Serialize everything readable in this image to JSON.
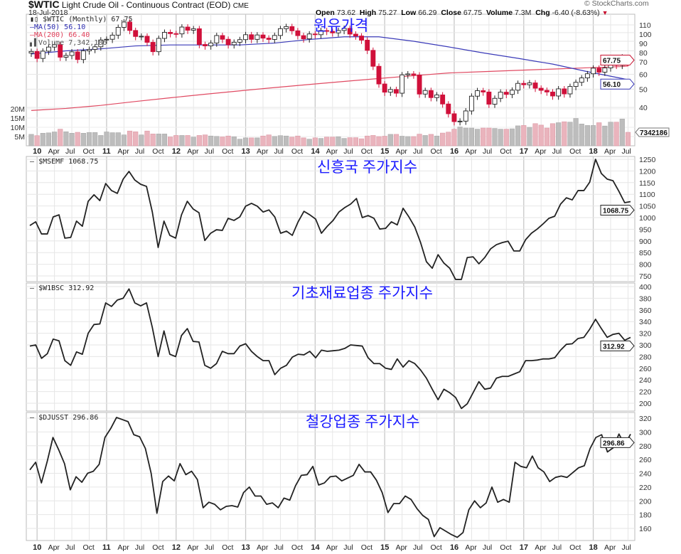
{
  "header": {
    "symbol": "$WTIC",
    "name": "Light Crude Oil - Continuous Contract (EOD)",
    "exchange": "CME",
    "date": "18-Jul-2018",
    "watermark": "© StockCharts.com",
    "ohlc": {
      "open_label": "Open",
      "open": "73.62",
      "high_label": "High",
      "high": "75.27",
      "low_label": "Low",
      "low": "66.29",
      "close_label": "Close",
      "close": "67.75",
      "volume_label": "Volume",
      "volume": "7.3M",
      "chg_label": "Chg",
      "chg": "-6.40 (-8.63%)"
    }
  },
  "annotations": {
    "oil": "원유가격",
    "em": "신흥국 주가지수",
    "materials": "기초재료업종 주가지수",
    "steel": "철강업종 주가지수"
  },
  "colors": {
    "up_candle": "#ffffff",
    "down_candle": "#d0103a",
    "up_volume": "#bdbdbd",
    "down_volume": "#eab4bd",
    "ma50": "#3a3ab8",
    "ma200": "#e04a62",
    "line": "#222222",
    "annotation": "#1a1aff"
  },
  "x_labels": [
    "10",
    "Apr",
    "Jul",
    "Oct",
    "11",
    "Apr",
    "Jul",
    "Oct",
    "12",
    "Apr",
    "Jul",
    "Oct",
    "13",
    "Apr",
    "Jul",
    "Oct",
    "14",
    "Apr",
    "Jul",
    "Oct",
    "15",
    "Apr",
    "Jul",
    "Oct",
    "16",
    "Apr",
    "Jul",
    "Oct",
    "17",
    "Apr",
    "Jul",
    "Oct",
    "18",
    "Apr",
    "Jul"
  ],
  "chart_data": [
    {
      "type": "candlestick",
      "period": "Monthly",
      "start": "Dec 2009",
      "end": "Jul 2018",
      "legend": [
        "$WTIC (Monthly) 67.75",
        "MA(50) 56.10",
        "MA(200) 66.40",
        "Volume 7,342,186"
      ],
      "y_scale": "log",
      "y_ticks": [
        40,
        50,
        60,
        70,
        80,
        90,
        100,
        110
      ],
      "close": [
        79.4,
        72.9,
        79.7,
        83.8,
        86.2,
        74.0,
        75.6,
        79.0,
        71.9,
        80.0,
        81.4,
        84.1,
        91.4,
        92.2,
        97.0,
        106.7,
        113.9,
        102.7,
        95.4,
        95.7,
        88.8,
        79.2,
        93.2,
        100.4,
        98.8,
        98.5,
        107.1,
        103.0,
        104.9,
        86.5,
        85.0,
        88.1,
        96.5,
        92.2,
        86.2,
        88.9,
        91.8,
        97.5,
        92.1,
        97.2,
        93.5,
        92.0,
        96.6,
        105.0,
        107.7,
        102.3,
        96.4,
        92.7,
        98.4,
        97.5,
        102.6,
        101.6,
        99.7,
        102.7,
        105.4,
        98.2,
        96.0,
        91.2,
        80.5,
        66.2,
        53.3,
        48.2,
        49.8,
        47.6,
        59.6,
        60.3,
        59.5,
        47.1,
        49.2,
        45.1,
        46.6,
        41.7,
        37.0,
        33.6,
        33.8,
        38.3,
        45.9,
        49.1,
        48.3,
        41.6,
        44.7,
        48.2,
        46.9,
        49.4,
        53.7,
        52.8,
        54.0,
        50.6,
        49.3,
        48.3,
        46.0,
        50.2,
        47.2,
        51.7,
        54.4,
        57.4,
        60.4,
        64.7,
        61.6,
        64.9,
        68.6,
        67.0,
        74.15,
        67.75
      ],
      "last_candle": {
        "open": 73.62,
        "high": 75.27,
        "low": 66.29,
        "close": 67.75
      },
      "ma50_semiannual": [
        77,
        80,
        82,
        85,
        86,
        86,
        86,
        88,
        92,
        95,
        95,
        90,
        84,
        78,
        73,
        68,
        62,
        57,
        56.1
      ],
      "ma200_semiannual": [
        38.5,
        39.5,
        41,
        43,
        45,
        47,
        49,
        51,
        53,
        55,
        57,
        59,
        61,
        62,
        63,
        64,
        65,
        66,
        66.4
      ],
      "volume_millions": [
        6.2,
        5.5,
        6.8,
        7.0,
        7.5,
        9.0,
        7.6,
        6.8,
        7.3,
        6.8,
        7.2,
        7.2,
        5.6,
        7.5,
        7.1,
        7.1,
        5.9,
        8.0,
        7.6,
        5.9,
        8.0,
        6.4,
        6.4,
        6.4,
        4.8,
        5.6,
        5.6,
        5.6,
        4.7,
        5.6,
        5.9,
        5.3,
        5.1,
        4.8,
        5.3,
        4.9,
        3.6,
        4.3,
        4.3,
        4.3,
        5.3,
        5.9,
        5.1,
        5.5,
        5.3,
        4.7,
        5.3,
        4.3,
        3.6,
        4.3,
        4.0,
        4.7,
        4.7,
        4.9,
        4.0,
        4.4,
        4.4,
        3.8,
        5.3,
        5.6,
        5.0,
        5.2,
        6.2,
        6.2,
        5.2,
        5.0,
        5.0,
        6.3,
        5.6,
        6.2,
        5.3,
        6.9,
        7.4,
        9.0,
        10.2,
        9.6,
        9.6,
        9.0,
        9.6,
        9.6,
        9.4,
        9.0,
        9.0,
        9.2,
        10.8,
        11.0,
        10.0,
        12.0,
        11.2,
        9.6,
        12.0,
        12.5,
        13.0,
        12.8,
        14.8,
        11.8,
        11.0,
        11.0,
        12.5,
        10.7,
        12.8,
        12.8,
        14.5,
        7.3
      ],
      "volume_ticks": [
        "5M",
        "10M",
        "15M",
        "20M"
      ],
      "value_tags": {
        "close": "67.75",
        "ma50": "56.10",
        "volume": "7342186"
      }
    },
    {
      "type": "line",
      "legend": "$MSEMF 1068.75",
      "y_ticks": [
        750,
        800,
        850,
        900,
        950,
        1000,
        1050,
        1100,
        1150,
        1200,
        1250
      ],
      "values": [
        966,
        982,
        930,
        930,
        1003,
        1012,
        912,
        915,
        985,
        963,
        1070,
        1098,
        1073,
        1146,
        1116,
        1104,
        1165,
        1198,
        1161,
        1143,
        1134,
        1024,
        872,
        985,
        924,
        912,
        1012,
        1070,
        1037,
        1021,
        902,
        933,
        948,
        945,
        997,
        988,
        1003,
        1049,
        1061,
        1049,
        1024,
        1033,
        1003,
        933,
        942,
        924,
        982,
        1027,
        1012,
        994,
        933,
        963,
        988,
        1024,
        1043,
        1058,
        1082,
        1000,
        1009,
        997,
        951,
        954,
        982,
        969,
        1040,
        1003,
        960,
        893,
        811,
        783,
        841,
        805,
        783,
        735,
        735,
        829,
        832,
        802,
        829,
        866,
        884,
        893,
        899,
        857,
        857,
        905,
        933,
        951,
        973,
        997,
        1006,
        1058,
        1085,
        1076,
        1116,
        1116,
        1152,
        1250,
        1189,
        1165,
        1158,
        1113,
        1064,
        1068.75
      ],
      "value_tag": "1068.75"
    },
    {
      "type": "line",
      "legend": "$W1BSC 312.92",
      "y_ticks": [
        200,
        220,
        240,
        260,
        280,
        300,
        320,
        340,
        360,
        380,
        400
      ],
      "values": [
        298,
        300,
        277,
        285,
        310,
        307,
        273,
        265,
        288,
        284,
        320,
        335,
        336,
        372,
        366,
        377,
        380,
        396,
        372,
        367,
        372,
        330,
        280,
        324,
        284,
        280,
        316,
        328,
        306,
        305,
        265,
        260,
        268,
        289,
        285,
        285,
        298,
        302,
        289,
        280,
        273,
        273,
        249,
        260,
        265,
        279,
        284,
        283,
        289,
        278,
        291,
        289,
        290,
        291,
        294,
        300,
        299,
        298,
        278,
        268,
        268,
        260,
        258,
        276,
        262,
        273,
        268,
        257,
        243,
        224,
        206,
        224,
        218,
        210,
        191,
        199,
        218,
        237,
        224,
        226,
        243,
        246,
        246,
        250,
        254,
        273,
        273,
        274,
        276,
        276,
        278,
        291,
        301,
        302,
        311,
        313,
        327,
        344,
        328,
        313,
        318,
        320,
        308,
        312.92
      ],
      "value_tag": "312.92"
    },
    {
      "type": "line",
      "legend": "$DJUSST 296.86",
      "y_ticks": [
        160,
        180,
        200,
        220,
        240,
        260,
        280,
        300,
        320
      ],
      "values": [
        245,
        256,
        226,
        257,
        292,
        274,
        254,
        216,
        235,
        227,
        240,
        243,
        253,
        292,
        305,
        321,
        318,
        315,
        296,
        293,
        276,
        240,
        182,
        228,
        236,
        229,
        254,
        238,
        243,
        231,
        190,
        198,
        195,
        187,
        192,
        193,
        191,
        212,
        220,
        207,
        207,
        195,
        197,
        190,
        204,
        201,
        222,
        237,
        238,
        250,
        223,
        226,
        235,
        236,
        229,
        233,
        237,
        253,
        242,
        242,
        230,
        212,
        183,
        196,
        196,
        207,
        202,
        189,
        179,
        173,
        148,
        161,
        156,
        151,
        147,
        154,
        187,
        200,
        190,
        197,
        220,
        198,
        202,
        198,
        256,
        250,
        248,
        265,
        248,
        242,
        228,
        234,
        236,
        234,
        241,
        248,
        251,
        276,
        292,
        296,
        271,
        277,
        297,
        281,
        296.86
      ],
      "value_tag": "296.86"
    }
  ]
}
